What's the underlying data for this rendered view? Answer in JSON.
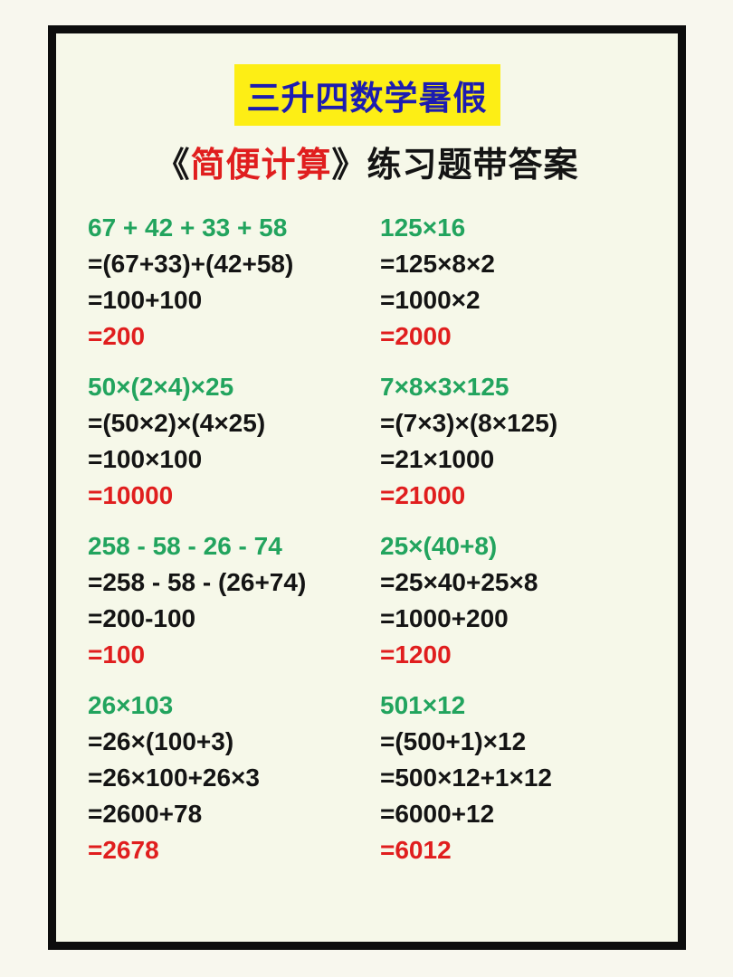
{
  "header": {
    "title": "三升四数学暑假",
    "subtitle": {
      "open_bracket": "《",
      "highlight": "简便计算",
      "close_bracket": "》",
      "rest": "练习题带答案"
    }
  },
  "colors": {
    "problem_green": "#22a45e",
    "answer_red": "#e01e1e",
    "title_blue": "#1c1cb0",
    "title_highlight_yellow": "#fdee15",
    "text_black": "#141414",
    "paper_background": "#f6f8e9",
    "frame_border": "#0d0d0d"
  },
  "problems": [
    {
      "expression": "67 + 42 + 33 + 58",
      "steps": [
        "=(67+33)+(42+58)",
        "=100+100"
      ],
      "answer": "=200"
    },
    {
      "expression": "125×16",
      "steps": [
        "=125×8×2",
        "=1000×2"
      ],
      "answer": "=2000"
    },
    {
      "expression": "50×(2×4)×25",
      "steps": [
        "=(50×2)×(4×25)",
        "=100×100"
      ],
      "answer": "=10000"
    },
    {
      "expression": "7×8×3×125",
      "steps": [
        "=(7×3)×(8×125)",
        "=21×1000"
      ],
      "answer": "=21000"
    },
    {
      "expression": "258 - 58 - 26 - 74",
      "steps": [
        "=258 - 58 - (26+74)",
        "=200-100"
      ],
      "answer": "=100"
    },
    {
      "expression": "25×(40+8)",
      "steps": [
        "=25×40+25×8",
        "=1000+200"
      ],
      "answer": "=1200"
    },
    {
      "expression": "26×103",
      "steps": [
        "=26×(100+3)",
        "=26×100+26×3",
        "=2600+78"
      ],
      "answer": "=2678"
    },
    {
      "expression": "501×12",
      "steps": [
        "=(500+1)×12",
        "=500×12+1×12",
        "=6000+12"
      ],
      "answer": "=6012"
    }
  ]
}
